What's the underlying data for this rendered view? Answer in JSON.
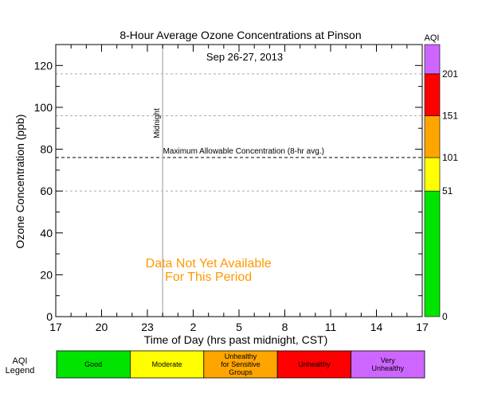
{
  "chart_data": {
    "type": "line",
    "title": "8-Hour Average Ozone Concentrations at Pinson",
    "subtitle": "Sep 26-27, 2013",
    "xlabel": "Time of Day (hrs past midnight, CST)",
    "ylabel": "Ozone Concentration (ppb)",
    "xlim": [
      0,
      24
    ],
    "ylim": [
      0,
      130
    ],
    "x_ticks": [
      {
        "x": 0,
        "label": "17"
      },
      {
        "x": 3,
        "label": "20"
      },
      {
        "x": 6,
        "label": "23"
      },
      {
        "x": 9,
        "label": "2"
      },
      {
        "x": 12,
        "label": "5"
      },
      {
        "x": 15,
        "label": "8"
      },
      {
        "x": 18,
        "label": "11"
      },
      {
        "x": 21,
        "label": "14"
      },
      {
        "x": 24,
        "label": "17"
      }
    ],
    "y_ticks": [
      0,
      20,
      40,
      60,
      80,
      100,
      120
    ],
    "series": [],
    "reference_lines": [
      {
        "y": 76,
        "label": "Maximum Allowable Concentration (8-hr avg.)",
        "style": "dashed-black"
      },
      {
        "y": 60,
        "style": "dashed-gray"
      },
      {
        "y": 96,
        "style": "dashed-gray"
      },
      {
        "y": 116,
        "style": "dashed-gray"
      }
    ],
    "vertical_line": {
      "x": 7,
      "label": "Midnight"
    },
    "annotation": [
      "Data Not Yet Available",
      "For This Period"
    ],
    "annotation_color": "#ff9900",
    "aqi_bar": {
      "title": "AQI",
      "bands": [
        {
          "from": 0,
          "to": 60,
          "color": "#00e400",
          "label": "0"
        },
        {
          "from": 60,
          "to": 76,
          "color": "#ffff00",
          "label": "51"
        },
        {
          "from": 76,
          "to": 96,
          "color": "#ffa500",
          "label": "101"
        },
        {
          "from": 96,
          "to": 116,
          "color": "#ff0000",
          "label": "151"
        },
        {
          "from": 116,
          "to": 130,
          "color": "#cc66ff",
          "label": "201"
        }
      ]
    },
    "legend": {
      "title_lines": [
        "AQI",
        "Legend"
      ],
      "items": [
        {
          "lines": [
            "Good"
          ],
          "color": "#00e400"
        },
        {
          "lines": [
            "Moderate"
          ],
          "color": "#ffff00"
        },
        {
          "lines": [
            "Unhealthy",
            "for Sensitive",
            "Groups"
          ],
          "color": "#ffa500"
        },
        {
          "lines": [
            "Unhealthy"
          ],
          "color": "#ff0000"
        },
        {
          "lines": [
            "Very",
            "Unhealthy"
          ],
          "color": "#cc66ff"
        }
      ]
    }
  }
}
